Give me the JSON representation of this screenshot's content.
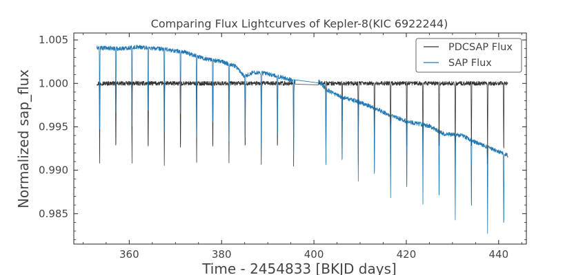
{
  "chart_data": {
    "type": "line",
    "title": "Comparing Flux Lightcurves of Kepler-8(KIC 6922244)",
    "xlabel": "Time - 2454833 [BKJD days]",
    "ylabel": "Normalized sap_flux",
    "xlim": [
      348,
      446
    ],
    "ylim": [
      0.9815,
      1.0058
    ],
    "xticks": [
      360,
      380,
      400,
      420,
      440
    ],
    "yticks": [
      0.985,
      0.99,
      0.995,
      1.0,
      1.005
    ],
    "xtick_labels": [
      "360",
      "380",
      "400",
      "420",
      "440"
    ],
    "ytick_labels": [
      "0.985",
      "0.990",
      "0.995",
      "1.000",
      "1.005"
    ],
    "legend_position": "top-right",
    "grid": false,
    "series": [
      {
        "name": "PDCSAP Flux",
        "color": "#333333",
        "baseline": [
          [
            353.0,
            1.0
          ],
          [
            396.0,
            1.0
          ],
          [
            401.0,
            1.0
          ],
          [
            442.0,
            1.0
          ]
        ],
        "noise": 0.00025,
        "transit_times": [
          353.6,
          357.1,
          360.6,
          364.1,
          367.6,
          371.1,
          374.6,
          378.1,
          381.6,
          385.1,
          388.6,
          392.1,
          395.6,
          402.6,
          406.1,
          409.6,
          413.1,
          416.6,
          420.1,
          423.6,
          427.1,
          430.6,
          434.1,
          437.6,
          441.1
        ],
        "transit_depths": [
          0.0093,
          0.0091,
          0.0091,
          0.0091,
          0.0093,
          0.0093,
          0.0092,
          0.0093,
          0.0091,
          0.0091,
          0.0092,
          0.009,
          0.0093,
          0.0093,
          0.0093,
          0.0094,
          0.0096,
          0.0093,
          0.0094,
          0.0092,
          0.0093,
          0.0094,
          0.0093,
          0.0095,
          0.0096
        ]
      },
      {
        "name": "SAP Flux",
        "color": "#1f77b4",
        "baseline": [
          [
            353.0,
            1.0041
          ],
          [
            358.0,
            1.004
          ],
          [
            362.0,
            1.0042
          ],
          [
            368.0,
            1.0039
          ],
          [
            372.0,
            1.0036
          ],
          [
            376.0,
            1.0029
          ],
          [
            380.0,
            1.0025
          ],
          [
            383.0,
            1.002
          ],
          [
            385.0,
            1.0008
          ],
          [
            387.0,
            1.0013
          ],
          [
            390.0,
            1.0011
          ],
          [
            392.0,
            1.0008
          ],
          [
            394.0,
            1.0006
          ],
          [
            396.0,
            1.0002
          ],
          [
            401.0,
            1.0002
          ],
          [
            403.0,
            0.9992
          ],
          [
            406.0,
            0.9984
          ],
          [
            409.0,
            0.998
          ],
          [
            413.0,
            0.9972
          ],
          [
            417.0,
            0.9962
          ],
          [
            421.0,
            0.9955
          ],
          [
            425.0,
            0.9951
          ],
          [
            428.0,
            0.9942
          ],
          [
            432.0,
            0.994
          ],
          [
            436.0,
            0.993
          ],
          [
            442.0,
            0.9917
          ]
        ],
        "noise": 0.00025,
        "transit_times": [
          353.6,
          357.1,
          360.6,
          364.1,
          367.6,
          371.1,
          374.6,
          378.1,
          381.6,
          385.1,
          388.6,
          392.1,
          395.6,
          402.6,
          406.1,
          409.6,
          413.1,
          416.6,
          420.1,
          423.6,
          427.1,
          430.6,
          434.1,
          437.6,
          441.1
        ],
        "transit_depths": [
          0.0095,
          0.0093,
          0.0093,
          0.0093,
          0.0094,
          0.0093,
          0.0092,
          0.0092,
          0.009,
          0.0088,
          0.0089,
          0.0087,
          0.0088,
          0.009,
          0.0092,
          0.0094,
          0.0096,
          0.0094,
          0.0096,
          0.0091,
          0.0094,
          0.0096,
          0.0094,
          0.0098,
          0.01
        ]
      }
    ]
  }
}
